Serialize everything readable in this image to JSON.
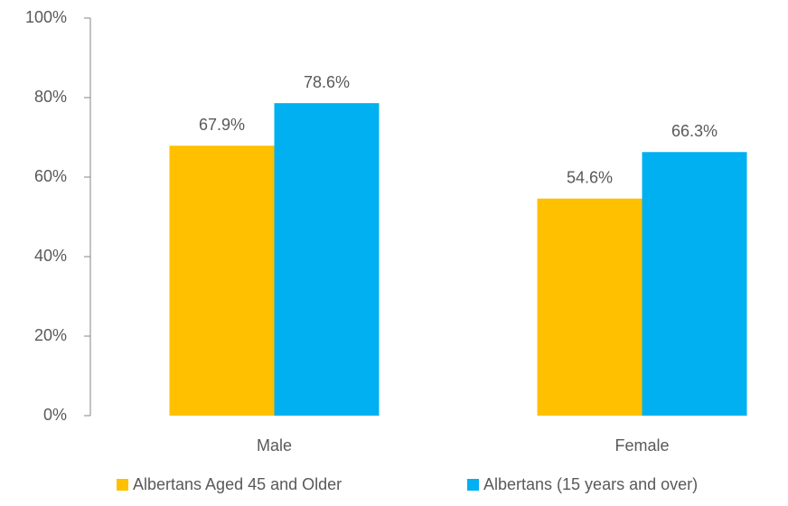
{
  "chart_data": {
    "type": "bar",
    "categories": [
      "Male",
      "Female"
    ],
    "series": [
      {
        "name": "Albertans Aged 45 and Older",
        "color": "#ffc000",
        "values": [
          67.9,
          54.6
        ],
        "value_labels": [
          "67.9%",
          "54.6%"
        ]
      },
      {
        "name": "Albertans (15 years and over)",
        "color": "#00b0f0",
        "values": [
          78.6,
          66.3
        ],
        "value_labels": [
          "78.6%",
          "66.3%"
        ]
      }
    ],
    "ylim": [
      0,
      100
    ],
    "yticks": [
      {
        "value": 0,
        "label": "0%"
      },
      {
        "value": 20,
        "label": "20%"
      },
      {
        "value": 40,
        "label": "40%"
      },
      {
        "value": 60,
        "label": "60%"
      },
      {
        "value": 80,
        "label": "80%"
      },
      {
        "value": 100,
        "label": "100%"
      }
    ],
    "legend": "bottom"
  }
}
